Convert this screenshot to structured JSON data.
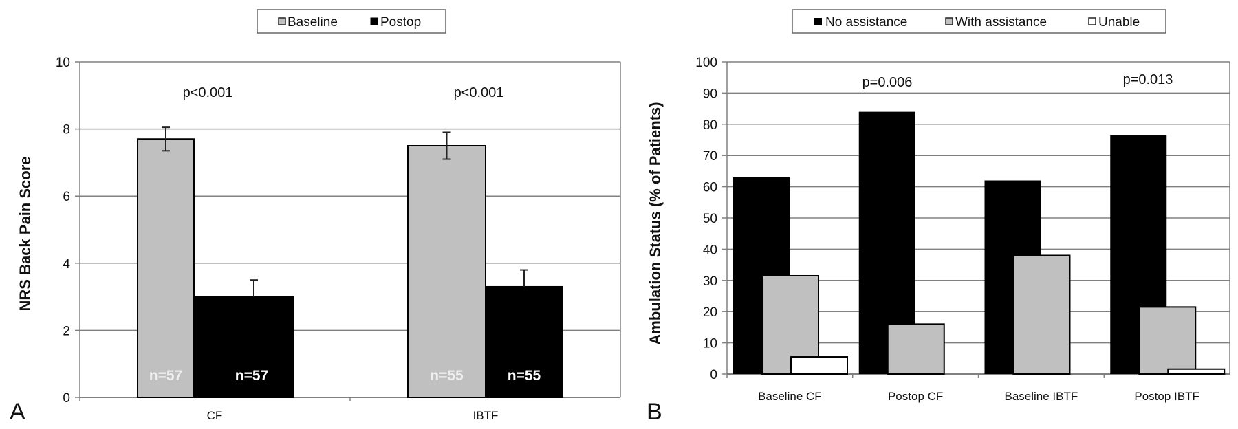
{
  "panels": [
    "A",
    "B"
  ],
  "chart_data": [
    {
      "type": "bar",
      "panel_label": "A",
      "title": "",
      "xlabel": "",
      "ylabel": "NRS Back Pain Score",
      "ylim": [
        0,
        10
      ],
      "yticks": [
        "0",
        "2",
        "4",
        "6",
        "8",
        "10"
      ],
      "grid": true,
      "legend": "top-center",
      "categories": [
        "CF",
        "IBTF"
      ],
      "series": [
        {
          "name": "Baseline",
          "color": "#c0c0c0",
          "values": [
            7.7,
            7.5
          ],
          "error_low": [
            7.35,
            7.1
          ],
          "error_high": [
            8.05,
            7.9
          ],
          "n_labels": [
            "n=57",
            "n=55"
          ],
          "n_label_color": "#eeeeee"
        },
        {
          "name": "Postop",
          "color": "#000000",
          "values": [
            3.0,
            3.3
          ],
          "error_low": [
            3.0,
            3.3
          ],
          "error_high": [
            3.5,
            3.8
          ],
          "n_labels": [
            "n=57",
            "n=55"
          ],
          "n_label_color": "#ffffff"
        }
      ],
      "annotations": [
        "p<0.001",
        "p<0.001"
      ]
    },
    {
      "type": "bar",
      "panel_label": "B",
      "title": "",
      "xlabel": "",
      "ylabel": "Ambulation Status (% of Patients)",
      "ylim": [
        0,
        100
      ],
      "yticks": [
        "0",
        "10",
        "20",
        "30",
        "40",
        "50",
        "60",
        "70",
        "80",
        "90",
        "100"
      ],
      "grid": true,
      "legend": "top-center",
      "categories": [
        "Baseline CF",
        "Postop CF",
        "Baseline  IBTF",
        "Postop  IBTF"
      ],
      "series": [
        {
          "name": "No assistance",
          "color": "#000000",
          "values": [
            63,
            84,
            62,
            76.5
          ]
        },
        {
          "name": "With assistance",
          "color": "#c0c0c0",
          "values": [
            31.5,
            16,
            38,
            21.5
          ]
        },
        {
          "name": "Unable",
          "color": "#ffffff",
          "values": [
            5.5,
            0,
            0,
            1.6
          ]
        }
      ],
      "annotations": [
        "p=0.006",
        "p=0.013"
      ]
    }
  ]
}
